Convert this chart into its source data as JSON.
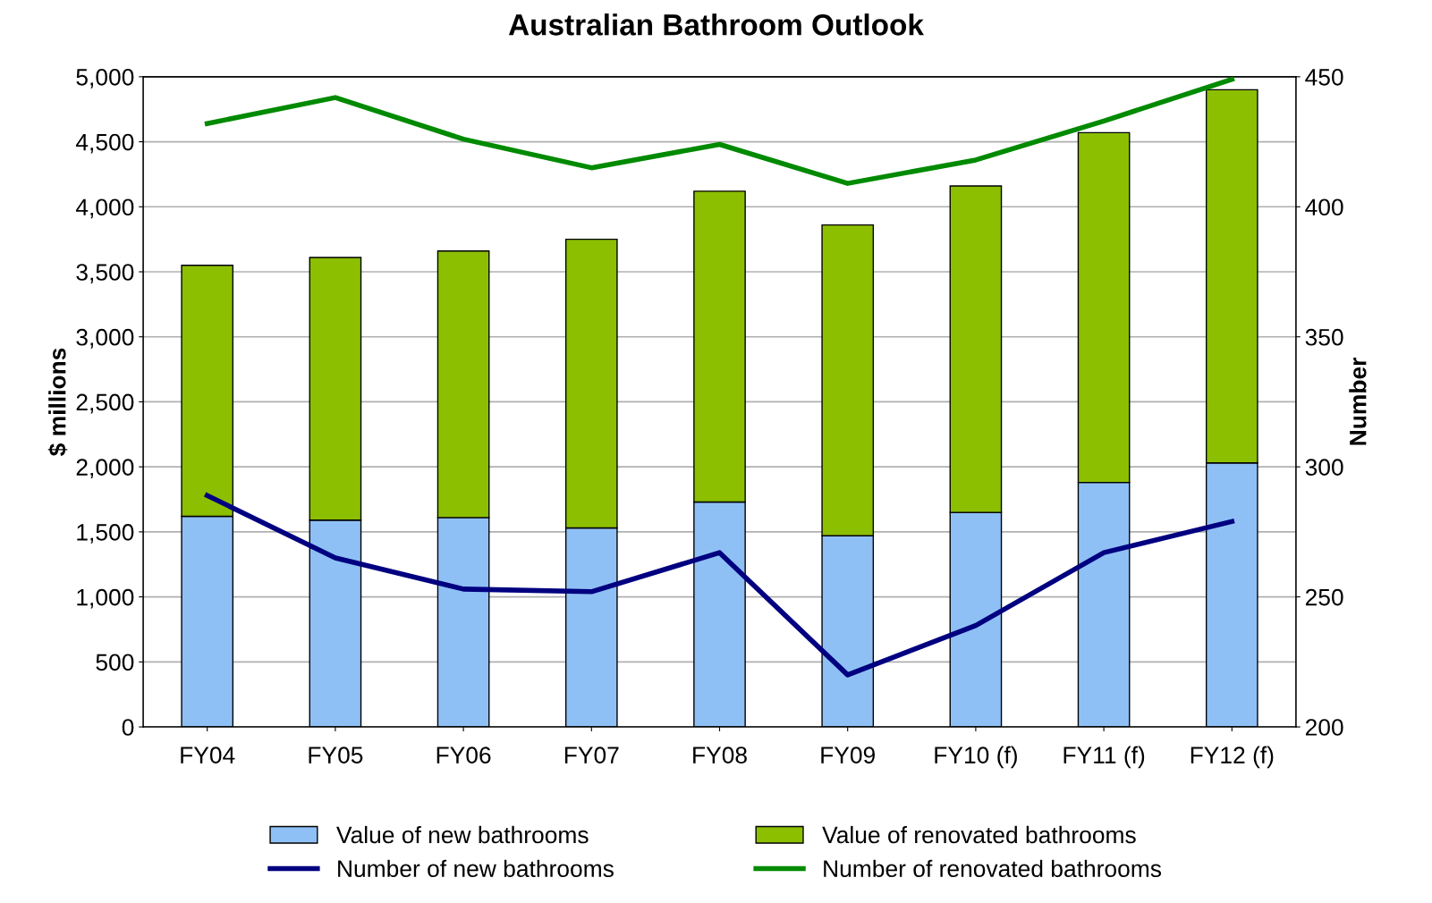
{
  "chart_data": {
    "type": "bar",
    "title": "Australian Bathroom Outlook",
    "ylabel": "$ millions",
    "y2label": "Number",
    "categories": [
      "FY04",
      "FY05",
      "FY06",
      "FY07",
      "FY08",
      "FY09",
      "FY10 (f)",
      "FY11 (f)",
      "FY12 (f)"
    ],
    "stacked": true,
    "series": [
      {
        "name": "Value of new bathrooms",
        "color": "#8fc0f5",
        "values": [
          1620,
          1590,
          1610,
          1530,
          1730,
          1470,
          1650,
          1880,
          2030
        ]
      },
      {
        "name": "Value of renovated bathrooms",
        "color": "#8cbf00",
        "values": [
          1930,
          2020,
          2050,
          2220,
          2390,
          2390,
          2510,
          2690,
          2870
        ]
      },
      {
        "name": "Number of new bathrooms",
        "type": "line",
        "axis": "y2",
        "color": "#000080",
        "values": [
          289,
          265,
          253,
          252,
          267,
          220,
          239,
          267,
          279
        ]
      },
      {
        "name": "Number of renovated bathrooms",
        "type": "line",
        "axis": "y2",
        "color": "#008a00",
        "values": [
          432,
          442,
          426,
          415,
          424,
          409,
          418,
          433,
          449
        ]
      }
    ],
    "ylim": [
      0,
      5000
    ],
    "yticks": [
      {
        "value": 0,
        "label": "0"
      },
      {
        "value": 500,
        "label": "500"
      },
      {
        "value": 1000,
        "label": "1,000"
      },
      {
        "value": 1500,
        "label": "1,500"
      },
      {
        "value": 2000,
        "label": "2,000"
      },
      {
        "value": 2500,
        "label": "2,500"
      },
      {
        "value": 3000,
        "label": "3,000"
      },
      {
        "value": 3500,
        "label": "3,500"
      },
      {
        "value": 4000,
        "label": "4,000"
      },
      {
        "value": 4500,
        "label": "4,500"
      },
      {
        "value": 5000,
        "label": "5,000"
      }
    ],
    "y2lim": [
      200,
      450
    ],
    "y2ticks": [
      200,
      250,
      300,
      350,
      400,
      450
    ],
    "grid": "y",
    "legend": "bottom",
    "marker": "none",
    "line_style": "solid"
  }
}
